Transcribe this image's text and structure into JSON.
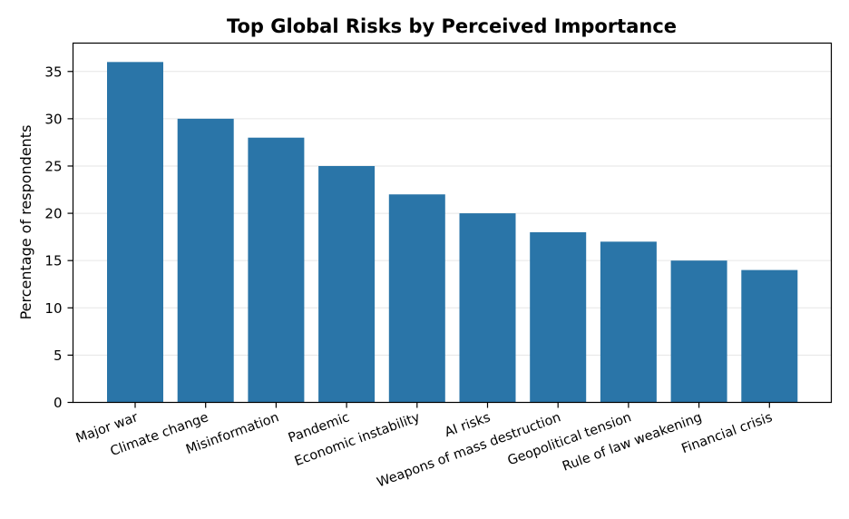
{
  "chart_data": {
    "type": "bar",
    "title": "Top Global Risks by Perceived Importance",
    "xlabel": "",
    "ylabel": "Percentage of respondents",
    "categories": [
      "Major war",
      "Climate change",
      "Misinformation",
      "Pandemic",
      "Economic instability",
      "AI risks",
      "Weapons of mass destruction",
      "Geopolitical tension",
      "Rule of law weakening",
      "Financial crisis"
    ],
    "values": [
      36,
      30,
      28,
      25,
      22,
      20,
      18,
      17,
      15,
      14
    ],
    "ylim": [
      0,
      38
    ],
    "yticks": [
      0,
      5,
      10,
      15,
      20,
      25,
      30,
      35
    ],
    "grid": "y",
    "bar_color": "#2a75a8",
    "grid_color": "#e6e6e6"
  }
}
